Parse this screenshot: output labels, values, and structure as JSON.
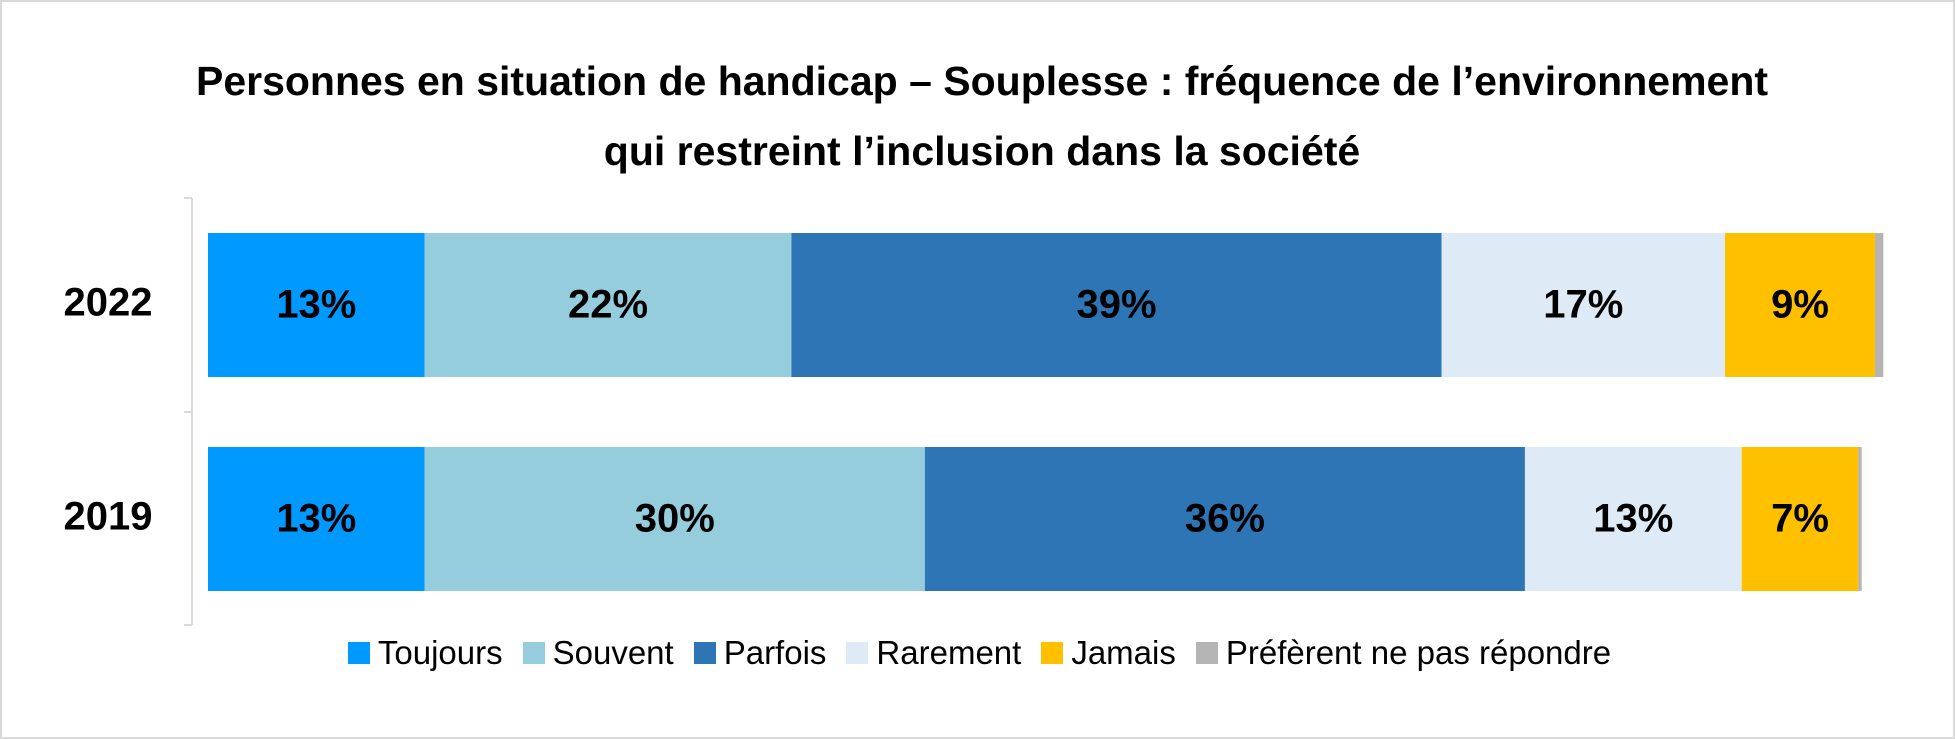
{
  "chart_data": {
    "type": "stacked-bar-horizontal",
    "title": "Personnes en situation de handicap – Souplesse : fréquence de l’environnement qui restreint l’inclusion dans la société",
    "categories": [
      "2022",
      "2019"
    ],
    "series": [
      {
        "name": "Toujours",
        "color": "#0099ff",
        "values": [
          13,
          13
        ],
        "value_labels": [
          "13%",
          "13%"
        ]
      },
      {
        "name": "Souvent",
        "color": "#96cddd",
        "values": [
          22,
          30
        ],
        "value_labels": [
          "22%",
          "30%"
        ]
      },
      {
        "name": "Parfois",
        "color": "#2e75b6",
        "values": [
          39,
          36
        ],
        "value_labels": [
          "39%",
          "36%"
        ]
      },
      {
        "name": "Rarement",
        "color": "#deebf7",
        "values": [
          17,
          13
        ],
        "value_labels": [
          "17%",
          "13%"
        ]
      },
      {
        "name": "Jamais",
        "color": "#ffc000",
        "values": [
          9,
          7
        ],
        "value_labels": [
          "9%",
          "7%"
        ]
      },
      {
        "name": "Préfèrent ne pas répondre",
        "color": "#b4b4b4",
        "values": [
          0.5,
          0.2
        ]
      }
    ],
    "legend": "bottom"
  }
}
